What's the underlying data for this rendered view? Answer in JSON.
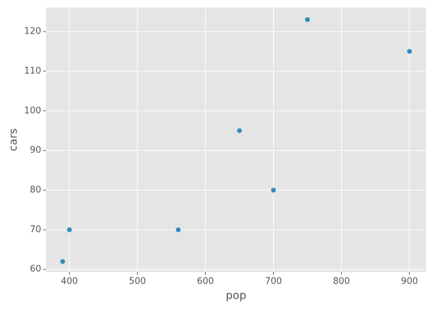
{
  "chart_data": {
    "type": "scatter",
    "x_label": "pop",
    "y_label": "cars",
    "x": [
      390,
      400,
      560,
      650,
      700,
      750,
      900
    ],
    "values": [
      62,
      70,
      70,
      95,
      80,
      123,
      115
    ],
    "color": "#348abd",
    "xlim": [
      365.5,
      924.5
    ],
    "xticks": [
      400,
      500,
      600,
      700,
      800,
      900
    ],
    "ylim": [
      59.35,
      126.05
    ],
    "yticks": [
      60,
      70,
      80,
      90,
      100,
      110,
      120
    ],
    "grid": true
  }
}
